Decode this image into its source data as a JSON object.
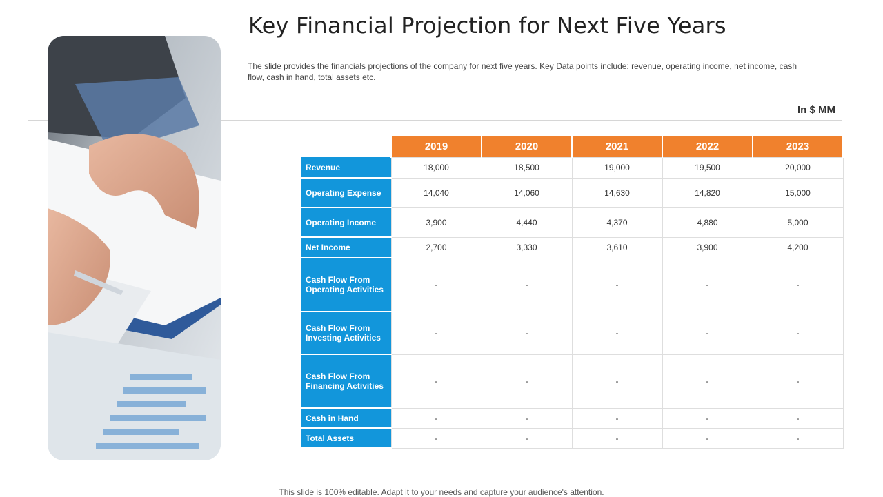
{
  "slide": {
    "title": "Key Financial Projection for Next Five Years",
    "description": "The slide provides  the financials projections of the company for next five  years. Key Data points include: revenue,  operating income, net income, cash flow, cash in hand, total assets etc.",
    "units": "In $ MM",
    "footer": "This slide is 100% editable. Adapt it to your needs and capture your audience's attention."
  },
  "colors": {
    "header": "#f0812d",
    "row_label": "#1296db"
  },
  "table": {
    "years": [
      "2019",
      "2020",
      "2021",
      "2022",
      "2023"
    ],
    "rows": [
      {
        "label": "Revenue",
        "values": [
          "18,000",
          "18,500",
          "19,000",
          "19,500",
          "20,000"
        ]
      },
      {
        "label": "Operating Expense",
        "values": [
          "14,040",
          "14,060",
          "14,630",
          "14,820",
          "15,000"
        ]
      },
      {
        "label": "Operating Income",
        "values": [
          "3,900",
          "4,440",
          "4,370",
          "4,880",
          "5,000"
        ]
      },
      {
        "label": "Net Income",
        "values": [
          "2,700",
          "3,330",
          "3,610",
          "3,900",
          "4,200"
        ]
      },
      {
        "label": "Cash Flow From Operating Activities",
        "values": [
          "-",
          "-",
          "-",
          "-",
          "-"
        ]
      },
      {
        "label": "Cash Flow From Investing Activities",
        "values": [
          "-",
          "-",
          "-",
          "-",
          "-"
        ]
      },
      {
        "label": "Cash Flow From Financing  Activities",
        "values": [
          "-",
          "-",
          "-",
          "-",
          "-"
        ]
      },
      {
        "label": "Cash in Hand",
        "values": [
          "-",
          "-",
          "-",
          "-",
          "-"
        ]
      },
      {
        "label": "Total Assets",
        "values": [
          "-",
          "-",
          "-",
          "-",
          "-"
        ]
      }
    ]
  }
}
